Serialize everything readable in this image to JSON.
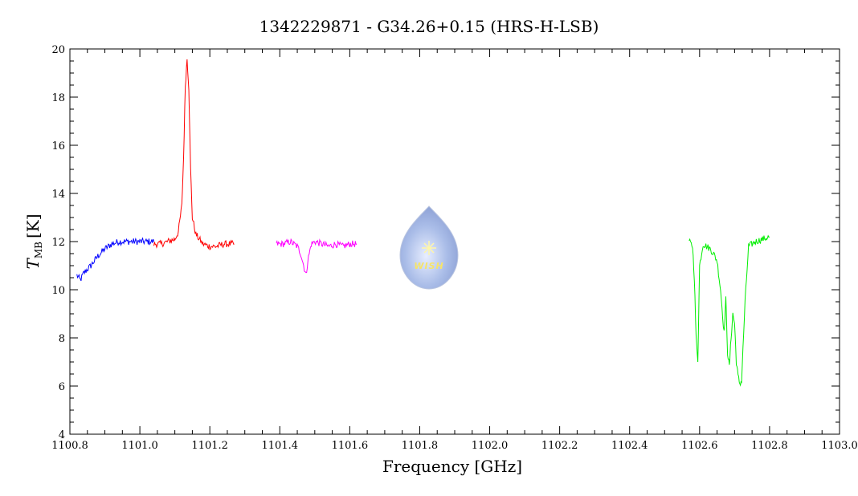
{
  "chart_data": {
    "type": "line",
    "title": "1342229871 - G34.26+0.15 (HRS-H-LSB)",
    "xlabel": "Frequency [GHz]",
    "ylabel_main": "T",
    "ylabel_sub": "MB",
    "ylabel_unit": "[K]",
    "xlim": [
      1100.8,
      1103.0
    ],
    "ylim": [
      4,
      20
    ],
    "x_ticks": [
      "1100.8",
      "1101.0",
      "1101.2",
      "1101.4",
      "1101.6",
      "1101.8",
      "1102.0",
      "1102.2",
      "1102.4",
      "1102.6",
      "1102.8",
      "1103.0"
    ],
    "y_ticks": [
      "4",
      "6",
      "8",
      "10",
      "12",
      "14",
      "16",
      "18",
      "20"
    ],
    "grid": false,
    "series": [
      {
        "color": "#0000ff",
        "x": [
          1100.82,
          1100.83,
          1100.84,
          1100.86,
          1100.88,
          1100.9,
          1100.92,
          1100.94,
          1100.96,
          1100.98,
          1101.0,
          1101.02,
          1101.04
        ],
        "y": [
          10.6,
          10.4,
          10.7,
          11.0,
          11.4,
          11.7,
          11.9,
          12.0,
          12.0,
          12.0,
          12.0,
          12.0,
          12.0
        ]
      },
      {
        "color": "#ff0000",
        "x": [
          1101.04,
          1101.06,
          1101.08,
          1101.1,
          1101.11,
          1101.12,
          1101.125,
          1101.13,
          1101.135,
          1101.14,
          1101.145,
          1101.15,
          1101.16,
          1101.17,
          1101.18,
          1101.2,
          1101.22,
          1101.24,
          1101.26,
          1101.27
        ],
        "y": [
          11.9,
          11.9,
          12.0,
          12.1,
          12.4,
          13.5,
          15.5,
          18.5,
          19.6,
          18.4,
          15.0,
          13.0,
          12.3,
          12.1,
          11.9,
          11.8,
          11.8,
          11.9,
          11.9,
          11.9
        ]
      },
      {
        "color": "#ff00ff",
        "x": [
          1101.39,
          1101.41,
          1101.43,
          1101.45,
          1101.46,
          1101.47,
          1101.475,
          1101.48,
          1101.49,
          1101.5,
          1101.52,
          1101.54,
          1101.56,
          1101.58,
          1101.6,
          1101.62
        ],
        "y": [
          11.9,
          11.9,
          12.0,
          11.8,
          11.5,
          10.9,
          10.6,
          11.2,
          11.9,
          12.0,
          11.9,
          11.8,
          11.9,
          11.8,
          11.9,
          11.9
        ]
      },
      {
        "color": "#00ee00",
        "x": [
          1102.57,
          1102.58,
          1102.585,
          1102.59,
          1102.595,
          1102.6,
          1102.61,
          1102.62,
          1102.63,
          1102.64,
          1102.65,
          1102.66,
          1102.67,
          1102.675,
          1102.68,
          1102.685,
          1102.69,
          1102.695,
          1102.7,
          1102.705,
          1102.71,
          1102.715,
          1102.72,
          1102.73,
          1102.74,
          1102.76,
          1102.78,
          1102.8
        ],
        "y": [
          12.0,
          11.8,
          10.5,
          8.0,
          7.1,
          11.0,
          11.9,
          11.8,
          11.7,
          11.5,
          11.2,
          10.0,
          8.2,
          9.6,
          7.4,
          6.8,
          8.0,
          9.0,
          8.6,
          7.0,
          6.4,
          6.1,
          6.2,
          9.5,
          11.8,
          12.0,
          12.1,
          12.2
        ]
      }
    ]
  },
  "logo": {
    "text": "WISH"
  }
}
